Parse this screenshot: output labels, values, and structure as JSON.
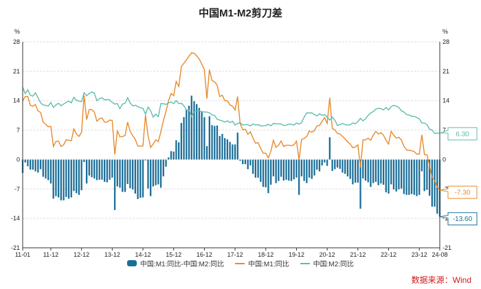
{
  "chart_data": {
    "type": "bar+line",
    "title": "中国M1-M2剪刀差",
    "y_unit_left": "%",
    "y_unit_right": "%",
    "ylim": [
      -21,
      28
    ],
    "yticks": [
      -21,
      -14,
      -7,
      0,
      7,
      14,
      21,
      28
    ],
    "x_tick_labels": [
      "11-01",
      "11-12",
      "12-12",
      "13-12",
      "14-12",
      "15-12",
      "16-12",
      "17-12",
      "18-12",
      "19-12",
      "20-12",
      "21-12",
      "22-12",
      "23-12",
      "24-08"
    ],
    "grid": "horizontal dashed",
    "legend_position": "bottom",
    "colors": {
      "diff": "#1b6e98",
      "m1": "#e8892b",
      "m2": "#5dbcab"
    },
    "series": [
      {
        "name": "中国:M1:同比-中国:M2:同比",
        "kind": "bar",
        "values": [
          -3.2,
          -0.7,
          -1.6,
          -2.4,
          -2.4,
          -2.8,
          -3.1,
          -2.3,
          -4.1,
          -4.5,
          -4.9,
          -5.7,
          -9.3,
          -8.7,
          -9.0,
          -9.7,
          -9.7,
          -8.9,
          -9.3,
          -9.0,
          -7.5,
          -8.0,
          -8.4,
          -7.3,
          -0.6,
          -5.7,
          -3.8,
          -4.2,
          -4.5,
          -4.9,
          -4.8,
          -4.8,
          -5.3,
          -5.4,
          -4.8,
          -4.3,
          -12.0,
          -6.4,
          -6.7,
          -7.7,
          -7.7,
          -5.8,
          -6.8,
          -7.1,
          -8.1,
          -9.4,
          -9.1,
          -9.0,
          -0.2,
          -6.9,
          -8.7,
          -6.4,
          -6.1,
          -5.9,
          -6.7,
          -4.0,
          -1.7,
          0.5,
          2.0,
          1.9,
          4.6,
          4.1,
          8.7,
          10.1,
          11.9,
          12.8,
          15.2,
          13.9,
          13.2,
          12.3,
          11.3,
          10.1,
          3.2,
          10.3,
          8.2,
          8.0,
          8.1,
          5.6,
          6.1,
          5.1,
          4.8,
          4.2,
          3.6,
          3.6,
          6.4,
          -0.3,
          -1.1,
          -1.1,
          -2.3,
          -1.4,
          -3.4,
          -4.3,
          -4.3,
          -5.3,
          -6.5,
          -6.6,
          -8.0,
          -6.0,
          -4.0,
          -5.6,
          -5.1,
          -4.1,
          -5.0,
          -4.8,
          -5.0,
          -5.1,
          -4.7,
          -4.3,
          -8.4,
          -4.0,
          -5.1,
          -5.6,
          -4.3,
          -4.6,
          -3.8,
          -2.4,
          -2.8,
          -1.4,
          -0.7,
          -1.5,
          5.3,
          -2.7,
          -2.3,
          -1.9,
          -2.2,
          -3.1,
          -3.4,
          -4.0,
          -4.6,
          -5.9,
          -5.5,
          -5.5,
          -11.7,
          -4.5,
          -5.0,
          -5.4,
          -6.5,
          -5.6,
          -5.3,
          -6.1,
          -5.7,
          -6.0,
          -7.8,
          -8.1,
          -5.9,
          -7.1,
          -7.6,
          -7.1,
          -6.9,
          -8.2,
          -8.4,
          -8.4,
          -8.2,
          -8.4,
          -8.7,
          -8.4,
          -2.8,
          -7.5,
          -7.2,
          -8.6,
          -11.2,
          -11.2,
          -12.9,
          -13.6
        ]
      },
      {
        "name": "中国:M1:同比",
        "kind": "line",
        "values": [
          14.0,
          15.0,
          15.0,
          12.9,
          12.7,
          13.1,
          11.6,
          11.2,
          8.9,
          8.4,
          7.8,
          7.9,
          3.1,
          4.3,
          4.4,
          3.1,
          3.5,
          4.7,
          4.6,
          4.5,
          7.3,
          6.1,
          5.5,
          6.5,
          15.3,
          9.5,
          11.9,
          11.9,
          11.3,
          9.1,
          9.7,
          9.9,
          8.9,
          8.9,
          9.4,
          9.3,
          1.2,
          6.9,
          5.4,
          5.5,
          5.7,
          8.9,
          6.7,
          5.7,
          4.8,
          3.2,
          3.2,
          3.2,
          10.6,
          5.6,
          2.9,
          3.7,
          4.7,
          4.3,
          6.6,
          9.3,
          11.4,
          14.0,
          15.7,
          15.2,
          18.6,
          17.4,
          22.1,
          22.9,
          23.7,
          24.6,
          25.4,
          25.3,
          24.7,
          23.9,
          22.7,
          21.4,
          14.5,
          21.4,
          18.8,
          18.5,
          17.7,
          15.0,
          15.3,
          14.0,
          14.0,
          13.0,
          12.7,
          11.8,
          15.0,
          8.5,
          7.1,
          7.2,
          6.0,
          6.6,
          5.1,
          3.9,
          4.0,
          2.7,
          1.5,
          1.5,
          0.4,
          2.0,
          4.6,
          2.9,
          3.4,
          4.4,
          3.1,
          3.4,
          3.4,
          3.3,
          3.5,
          4.4,
          0.0,
          4.8,
          5.0,
          5.5,
          6.8,
          6.5,
          6.9,
          8.0,
          8.1,
          9.1,
          10.0,
          8.6,
          14.7,
          7.4,
          7.1,
          6.2,
          6.1,
          5.5,
          4.9,
          4.2,
          3.7,
          2.8,
          3.0,
          3.5,
          -1.9,
          4.7,
          4.7,
          5.1,
          4.6,
          5.8,
          6.7,
          6.1,
          6.4,
          5.8,
          4.6,
          3.7,
          6.7,
          5.8,
          5.1,
          5.3,
          4.7,
          3.1,
          2.3,
          2.2,
          2.1,
          1.9,
          1.3,
          1.3,
          5.9,
          1.2,
          1.1,
          -1.4,
          -4.2,
          -5.0,
          -6.6,
          -7.3
        ]
      },
      {
        "name": "中国:M2:同比",
        "kind": "line",
        "values": [
          17.2,
          15.7,
          16.6,
          15.3,
          15.1,
          15.9,
          14.7,
          13.5,
          13.0,
          12.9,
          12.7,
          13.6,
          12.4,
          13.0,
          13.4,
          12.8,
          13.2,
          13.6,
          13.9,
          13.5,
          14.8,
          14.1,
          13.9,
          13.8,
          15.9,
          15.2,
          15.7,
          16.1,
          15.8,
          14.0,
          14.5,
          14.7,
          14.2,
          14.3,
          14.2,
          13.6,
          13.2,
          13.3,
          12.1,
          13.2,
          13.4,
          14.7,
          13.5,
          12.8,
          12.9,
          12.6,
          12.3,
          12.2,
          10.8,
          12.5,
          11.6,
          10.1,
          10.8,
          10.2,
          13.3,
          13.3,
          13.1,
          13.5,
          13.7,
          13.3,
          14.0,
          13.3,
          13.4,
          12.8,
          11.8,
          11.8,
          10.2,
          11.4,
          11.5,
          11.6,
          11.4,
          11.3,
          11.3,
          11.1,
          10.6,
          10.5,
          9.6,
          9.4,
          9.2,
          8.9,
          9.2,
          8.8,
          9.1,
          8.2,
          8.6,
          8.8,
          8.2,
          8.3,
          8.3,
          8.0,
          8.5,
          8.2,
          8.3,
          8.0,
          8.0,
          8.1,
          8.4,
          8.0,
          8.6,
          8.5,
          8.5,
          8.5,
          8.1,
          8.2,
          8.4,
          8.4,
          8.2,
          8.7,
          8.4,
          8.8,
          10.1,
          11.1,
          11.1,
          11.1,
          10.7,
          10.4,
          10.9,
          10.5,
          10.7,
          10.1,
          9.4,
          10.1,
          9.4,
          8.1,
          8.3,
          8.6,
          8.3,
          8.2,
          8.3,
          8.7,
          8.5,
          9.0,
          9.8,
          9.2,
          9.7,
          10.5,
          11.1,
          11.4,
          12.0,
          12.2,
          12.1,
          11.8,
          12.4,
          11.8,
          12.6,
          12.9,
          12.7,
          12.4,
          11.6,
          11.3,
          10.7,
          10.6,
          10.3,
          10.3,
          10.0,
          9.7,
          8.7,
          8.7,
          8.3,
          7.2,
          7.0,
          6.2,
          6.3,
          6.3
        ]
      }
    ],
    "last_value_labels": {
      "m2": "6.30",
      "m1": "-7.30",
      "diff": "-13.60"
    },
    "source": "数据来源：Wind"
  }
}
